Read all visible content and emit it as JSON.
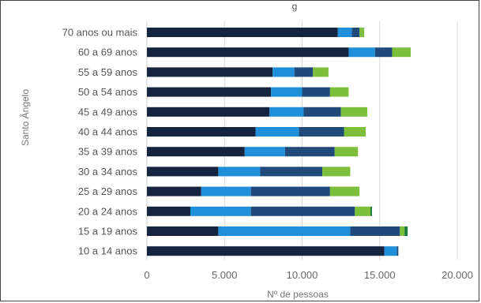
{
  "chart_data": {
    "type": "bar",
    "orientation": "horizontal",
    "stacked": true,
    "title": "",
    "title_fragment": "g",
    "ylabel": "Santo Ângelo",
    "xlabel": "Nº de pessoas",
    "xlim": [
      0,
      20000
    ],
    "xticks": [
      0,
      5000,
      10000,
      15000,
      20000
    ],
    "xtick_labels": [
      "0",
      "5.000",
      "10.000",
      "15.000",
      "20.000"
    ],
    "grid": true,
    "legend": "none",
    "categories": [
      "70 anos ou mais",
      "60 a 69 anos",
      "55 a 59 anos",
      "50 a 54 anos",
      "45 a 49 anos",
      "40 a 44 anos",
      "35 a 39 anos",
      "30 a 34 anos",
      "25 a 29 anos",
      "20 a 24 anos",
      "15 a 19 anos",
      "10 a 14 anos"
    ],
    "series": [
      {
        "color": "#15243f",
        "values": [
          12300,
          13000,
          8100,
          8000,
          7900,
          7000,
          6300,
          4600,
          3500,
          2800,
          4600,
          15300
        ]
      },
      {
        "color": "#1e8fd8",
        "values": [
          900,
          1700,
          1400,
          2000,
          2200,
          2800,
          2600,
          2700,
          3200,
          3900,
          8500,
          800
        ]
      },
      {
        "color": "#1f4a7a",
        "values": [
          500,
          1100,
          1200,
          1800,
          2400,
          2900,
          3200,
          4000,
          5100,
          6700,
          3200,
          100
        ]
      },
      {
        "color": "#7dbf3a",
        "values": [
          300,
          1200,
          1000,
          1200,
          1700,
          1400,
          1500,
          1800,
          1900,
          1000,
          300,
          0
        ]
      },
      {
        "color": "#1a7a3c",
        "values": [
          0,
          0,
          0,
          0,
          0,
          0,
          0,
          0,
          0,
          100,
          200,
          0
        ]
      }
    ]
  }
}
